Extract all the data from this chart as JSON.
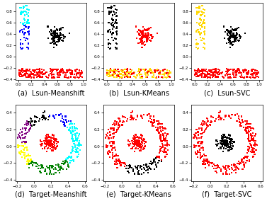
{
  "titles_top": [
    "(a)  Lsun-Meanshift",
    "(b)  Lsun-KMeans",
    "(c)  Lsun-SVC",
    "(d)  Target-Meanshift",
    "(e)  Target-KMeans",
    "(f)  Target-SVC"
  ],
  "title_fontsize": 7,
  "figsize": [
    3.77,
    2.84
  ],
  "dpi": 100,
  "background": "#ffffff",
  "lsun_xlim": [
    -0.05,
    1.05
  ],
  "lsun_ylim": [
    -0.42,
    0.95
  ],
  "target_xlim": [
    -0.22,
    0.62
  ],
  "target_ylim": [
    -0.42,
    0.5
  ],
  "seed": 42,
  "marker_size": 2.5
}
